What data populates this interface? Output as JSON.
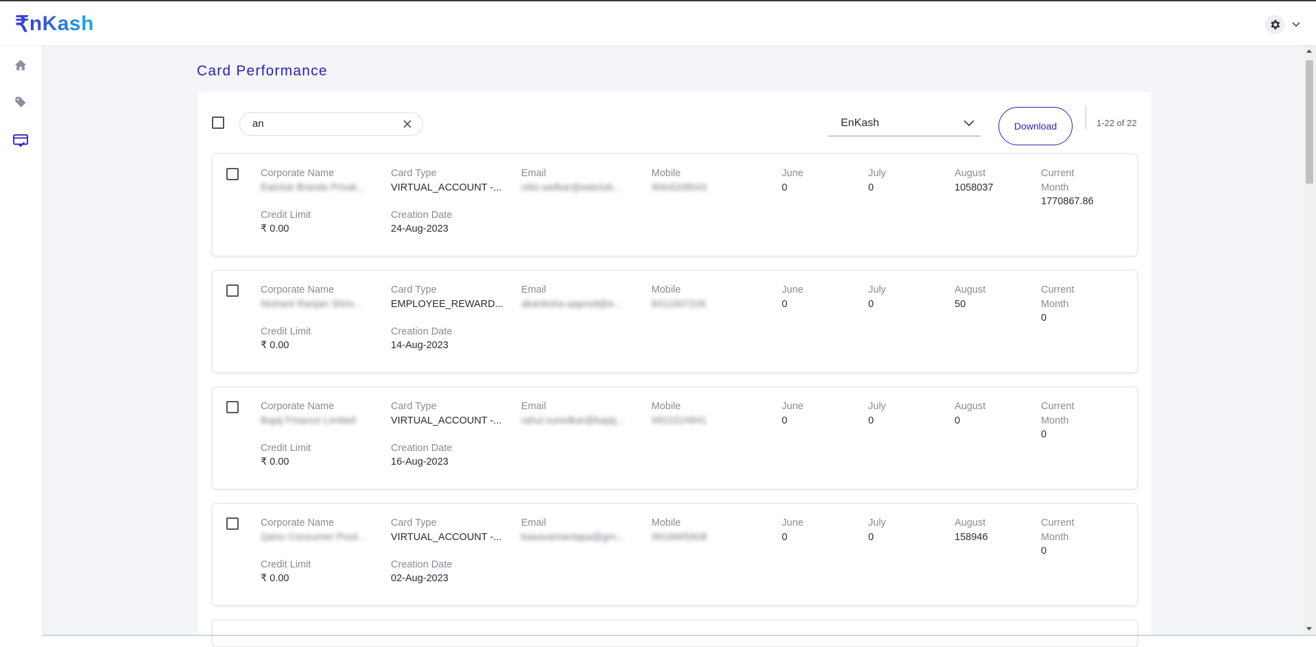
{
  "app": {
    "logo_mark": "₹",
    "logo_text": "nKash"
  },
  "header": {
    "settings_icon": "gear-icon",
    "dropdown_icon": "chevron-down-icon"
  },
  "sidebar": {
    "items": [
      {
        "name": "home",
        "icon": "home-icon"
      },
      {
        "name": "tags",
        "icon": "tag-icon"
      },
      {
        "name": "card-performance",
        "icon": "card-check-icon",
        "active": true
      }
    ]
  },
  "page": {
    "title": "Card Performance"
  },
  "toolbar": {
    "search_value": "an",
    "search_clear_icon": "close-icon",
    "select_value": "EnKash",
    "download_label": "Download",
    "pagination": "1-22 of 22"
  },
  "labels": {
    "corporate_name": "Corporate Name",
    "card_type": "Card Type",
    "email": "Email",
    "mobile": "Mobile",
    "june": "June",
    "july": "July",
    "august": "August",
    "current_month_1": "Current",
    "current_month_2": "Month",
    "credit_limit": "Credit Limit",
    "creation_date": "Creation Date"
  },
  "cards": [
    {
      "corporate_name": "Eatclub Brands Privat...",
      "card_type": "VIRTUAL_ACCOUNT -...",
      "email": "nitin.welkar@eatclub...",
      "mobile": "9004208543",
      "june": "0",
      "july": "0",
      "august": "1058037",
      "current_month": "1770867.86",
      "credit_limit": "₹ 0.00",
      "creation_date": "24-Aug-2023"
    },
    {
      "corporate_name": "Nishant Ranjan Shriv...",
      "card_type": "EMPLOYEE_REWARD...",
      "email": "akanksha-qaprod@e...",
      "mobile": "8411007226",
      "june": "0",
      "july": "0",
      "august": "50",
      "current_month": "0",
      "credit_limit": "₹ 0.00",
      "creation_date": "14-Aug-2023"
    },
    {
      "corporate_name": "Bajaj Finance Limited",
      "card_type": "VIRTUAL_ACCOUNT -...",
      "email": "rahul.suredkar@bajaj...",
      "mobile": "9922224841",
      "june": "0",
      "july": "0",
      "august": "0",
      "current_month": "0",
      "credit_limit": "₹ 0.00",
      "creation_date": "16-Aug-2023"
    },
    {
      "corporate_name": "Qano Consumer Prod...",
      "card_type": "VIRTUAL_ACCOUNT -...",
      "email": "basavamantapa@gm...",
      "mobile": "9916665608",
      "june": "0",
      "july": "0",
      "august": "158946",
      "current_month": "0",
      "credit_limit": "₹ 0.00",
      "creation_date": "02-Aug-2023"
    }
  ],
  "colors": {
    "accent": "#2a1fb8",
    "background": "#f4f5f9"
  }
}
